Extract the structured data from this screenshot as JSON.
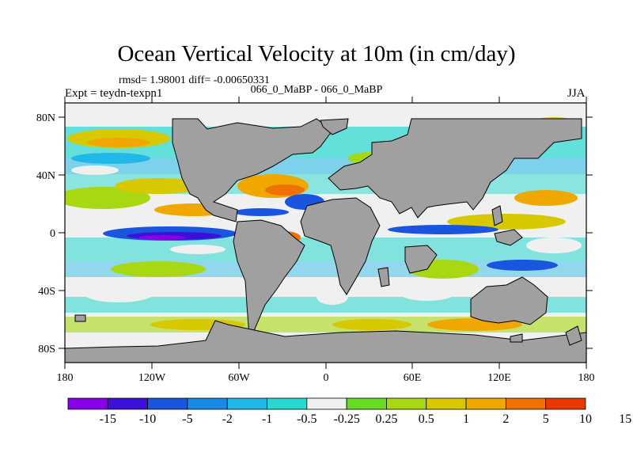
{
  "title": "Ocean Vertical Velocity at 10m (in cm/day)",
  "stats_text": "rmsd= 1.98001 diff= -0.00650331",
  "center_label": "066_0_MaBP - 066_0_MaBP",
  "left_label": "Expt = teydn-texpn1",
  "right_label": "JJA",
  "map": {
    "lon_ticks": [
      "180",
      "120W",
      "60W",
      "0",
      "60E",
      "120E",
      "180"
    ],
    "lat_ticks": [
      "80N",
      "40N",
      "0",
      "40S",
      "80S"
    ],
    "land_color": "#a0a0a0"
  },
  "colorbar": {
    "colors": [
      "#8a00e6",
      "#3c10d8",
      "#1a55e0",
      "#1a8ae8",
      "#20b8e8",
      "#28d8d0",
      "#f0f0f0",
      "#66dd22",
      "#a8d812",
      "#d8c800",
      "#f0a800",
      "#f07000",
      "#e83800"
    ],
    "labels": [
      "-15",
      "-10",
      "-5",
      "-2",
      "-1",
      "-0.5",
      "-0.25",
      "0.25",
      "0.5",
      "1",
      "2",
      "5",
      "10",
      "15"
    ]
  }
}
